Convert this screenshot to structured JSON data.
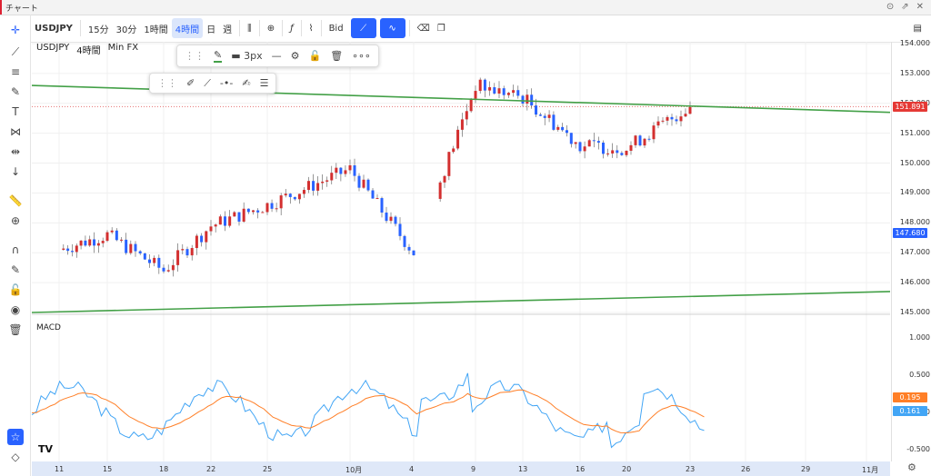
{
  "window": {
    "title": "チャート"
  },
  "toolbar": {
    "symbol": "USDJPY",
    "intervals": [
      "15分",
      "30分",
      "1時間",
      "4時間",
      "日",
      "週"
    ],
    "active_interval": "4時間",
    "bid_label": "Bid"
  },
  "chart": {
    "symbol_label": "USDJPY",
    "interval_label": "4時間",
    "source_label": "Min FX",
    "macd_label": "MACD",
    "stroke_width_label": "3px",
    "last_price": "151.891",
    "price_marker": "147.680",
    "macd_value": "0.195",
    "signal_value": "0.161"
  },
  "price_axis": [
    "154.000",
    "153.000",
    "152.000",
    "151.000",
    "150.000",
    "149.000",
    "148.000",
    "147.000",
    "146.000",
    "145.000"
  ],
  "macd_axis": [
    "1.000",
    "0.500",
    "0.000",
    "-0.500"
  ],
  "time_axis": [
    "11",
    "15",
    "18",
    "22",
    "25",
    "10月",
    "4",
    "9",
    "13",
    "16",
    "20",
    "23",
    "26",
    "29",
    "11月"
  ],
  "colors": {
    "up": "#d32f2f",
    "down": "#2962ff",
    "trend": "#43a047",
    "macd": "#42a5f5",
    "signal": "#ff7f27"
  },
  "chart_data": {
    "type": "candlestick",
    "title": "USDJPY 4時間 Min FX",
    "xlabel": "",
    "ylabel": "",
    "ylim": [
      145,
      154
    ],
    "x": [
      "11",
      "15",
      "18",
      "22",
      "25",
      "10月",
      "4",
      "9",
      "13",
      "16",
      "20",
      "23"
    ],
    "close": [
      147.1,
      147.6,
      146.4,
      147.9,
      148.6,
      149.8,
      147.0,
      152.6,
      152.2,
      150.6,
      150.5,
      151.9
    ],
    "trendlines": [
      {
        "from": [
          0,
          152.6
        ],
        "to": [
          1,
          151.7
        ]
      },
      {
        "from": [
          0,
          145.0
        ],
        "to": [
          1,
          145.7
        ]
      }
    ],
    "macd": {
      "macd_last": 0.195,
      "signal_last": 0.161,
      "ylim": [
        -0.6,
        1.2
      ]
    }
  }
}
